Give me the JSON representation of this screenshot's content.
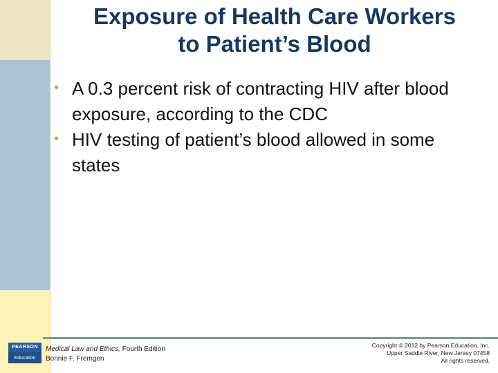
{
  "slide": {
    "title_line1": "Exposure of Health Care Workers",
    "title_line2": "to Patient’s Blood",
    "bullets": [
      "A 0.3 percent risk of contracting HIV after blood exposure, according to the CDC",
      "HIV testing of patient’s blood allowed in some states"
    ],
    "bullet_glyph": "•"
  },
  "footer": {
    "book_title": "Medical Law and Ethics,",
    "edition": " Fourth Edition",
    "author": "Bonnie F. Fremgen",
    "copyright_line1": "Copyright © 2012 by Pearson Education, Inc.",
    "copyright_line2": "Upper Saddle River, New Jersey 07458",
    "copyright_line3": "All rights reserved.",
    "logo_top": "PEARSON",
    "logo_bottom": "Education"
  },
  "colors": {
    "title": "#17375e",
    "bullet": "#c7a94d",
    "sidebar_blue": "#a9c3d4",
    "sidebar_tan": "#ede3c5",
    "sidebar_yellow": "#fff3b8",
    "footer_rule": "#7a9e8c"
  }
}
